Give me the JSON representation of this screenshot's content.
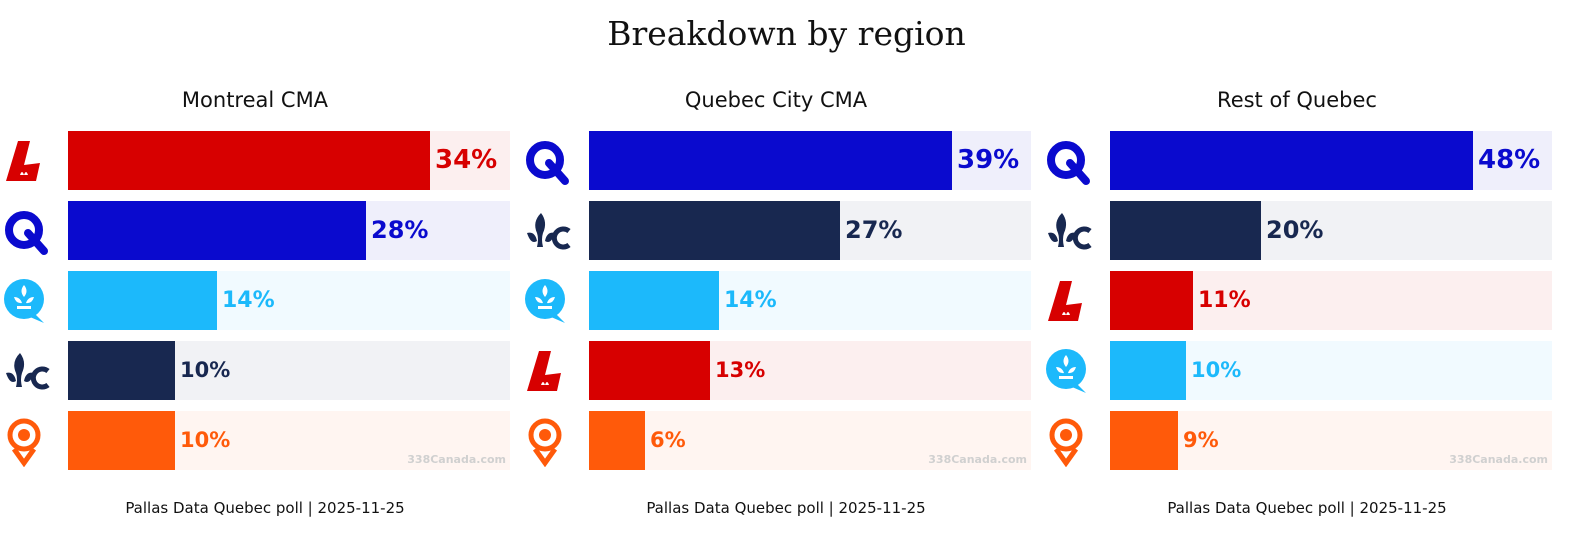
{
  "title": "Breakdown by region",
  "parties": {
    "PLQ": {
      "color": "#D70000",
      "track": "#FCEFEF",
      "icon": "plq-logo-icon"
    },
    "CAQ": {
      "color": "#0A0ACE",
      "track": "#EFEFFB",
      "icon": "caq-logo-icon"
    },
    "QS": {
      "color": "#1CB9FB",
      "track": "#F1FAFF",
      "icon": "qs-logo-icon"
    },
    "PQ": {
      "color": "#182850",
      "track": "#F1F2F5",
      "icon": "pq-logo-icon"
    },
    "PCQ": {
      "color": "#FF5A0A",
      "track": "#FFF5F1",
      "icon": "pcq-logo-icon"
    }
  },
  "chart_data": [
    {
      "type": "bar",
      "title": "Montreal CMA",
      "categories": [
        "PLQ",
        "CAQ",
        "QS",
        "PQ",
        "PCQ"
      ],
      "values": [
        34,
        28,
        14,
        10,
        10
      ],
      "labels": [
        "34%",
        "28%",
        "14%",
        "10%",
        "10%"
      ],
      "xlim": [
        0,
        41.5
      ],
      "source": "Pallas Data Quebec poll | 2025-11-25",
      "watermark": "338Canada.com"
    },
    {
      "type": "bar",
      "title": "Quebec City CMA",
      "categories": [
        "CAQ",
        "PQ",
        "QS",
        "PLQ",
        "PCQ"
      ],
      "values": [
        39,
        27,
        14,
        13,
        6
      ],
      "labels": [
        "39%",
        "27%",
        "14%",
        "13%",
        "6%"
      ],
      "xlim": [
        0,
        47.5
      ],
      "source": "Pallas Data Quebec poll | 2025-11-25",
      "watermark": "338Canada.com"
    },
    {
      "type": "bar",
      "title": "Rest of Quebec",
      "categories": [
        "CAQ",
        "PQ",
        "PLQ",
        "QS",
        "PCQ"
      ],
      "values": [
        48,
        20,
        11,
        10,
        9
      ],
      "labels": [
        "48%",
        "20%",
        "11%",
        "10%",
        "9%"
      ],
      "xlim": [
        0,
        58.5
      ],
      "source": "Pallas Data Quebec poll | 2025-11-25",
      "watermark": "338Canada.com"
    }
  ]
}
